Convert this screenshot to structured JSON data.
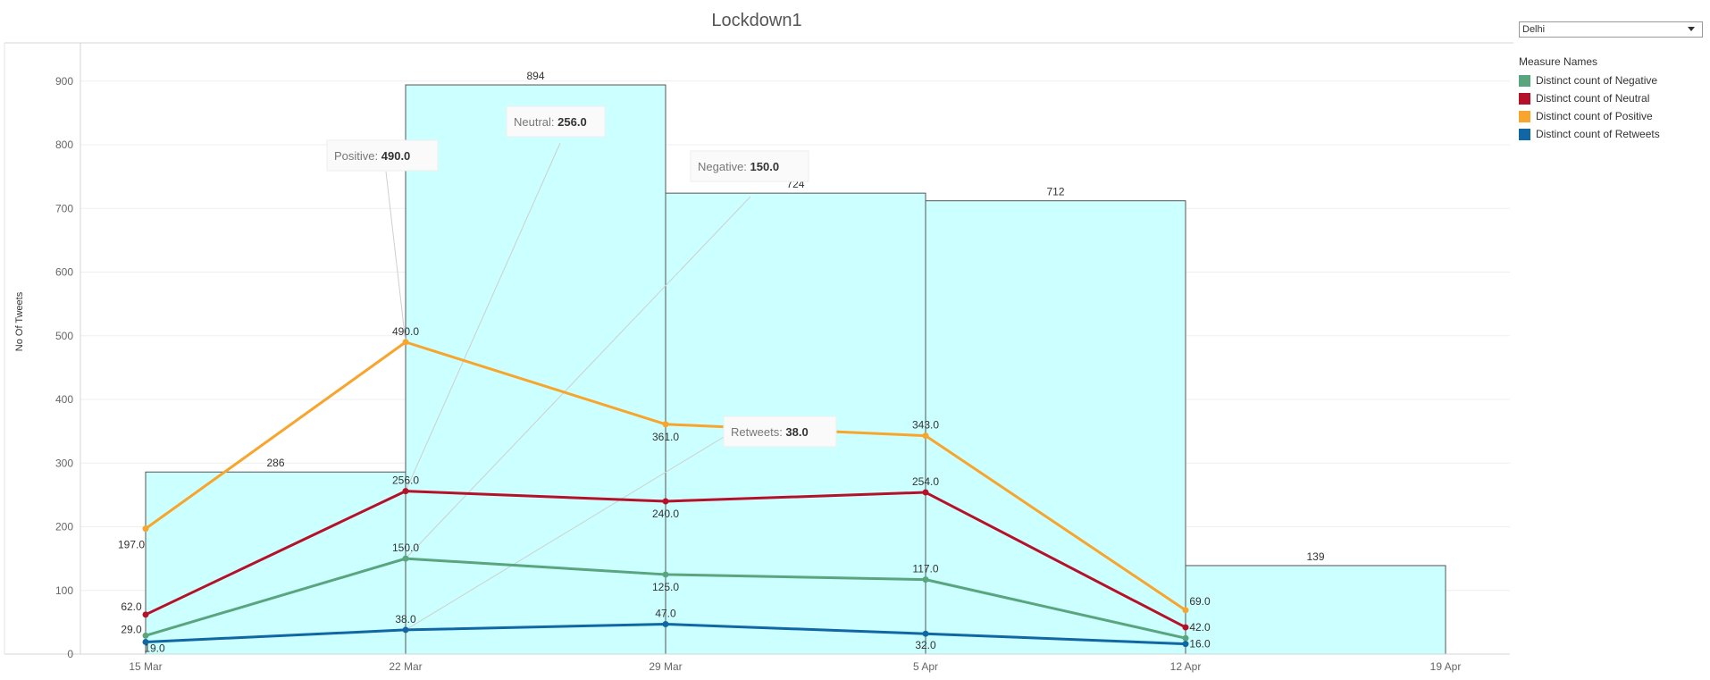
{
  "filter": {
    "selected": "Delhi"
  },
  "legend": {
    "title": "Measure Names",
    "items": [
      {
        "label": "Distinct count of Negative",
        "color": "#59a57e"
      },
      {
        "label": "Distinct count of Neutral",
        "color": "#b5122a"
      },
      {
        "label": "Distinct count of Positive",
        "color": "#f7a52c"
      },
      {
        "label": "Distinct count of Retweets",
        "color": "#1167a4"
      }
    ]
  },
  "tooltips": [
    {
      "label": "Positive:",
      "value": "490.0",
      "series": "Positive",
      "index": 1
    },
    {
      "label": "Neutral:",
      "value": "256.0",
      "series": "Neutral",
      "index": 1
    },
    {
      "label": "Negative:",
      "value": "150.0",
      "series": "Negative",
      "index": 1
    },
    {
      "label": "Retweets:",
      "value": "38.0",
      "series": "Retweets",
      "index": 1
    }
  ],
  "chart_data": {
    "type": "bar",
    "title": "Lockdown1",
    "xlabel": "",
    "ylabel": "No Of Tweets",
    "ylim": [
      0,
      960
    ],
    "yticks": [
      0,
      100,
      200,
      300,
      400,
      500,
      600,
      700,
      800,
      900
    ],
    "grid": true,
    "legend_position": "right",
    "x_tick_labels": [
      "15 Mar",
      "22 Mar",
      "29 Mar",
      "5 Apr",
      "12 Apr",
      "19 Apr"
    ],
    "bars": {
      "color": "#ccffff",
      "starts": [
        "15 Mar",
        "22 Mar",
        "29 Mar",
        "5 Apr",
        "12 Apr"
      ],
      "values": [
        286,
        894,
        724,
        712,
        139
      ],
      "labels": [
        "286",
        "894",
        "724",
        "712",
        "139"
      ]
    },
    "line_x": [
      "15 Mar",
      "22 Mar",
      "29 Mar",
      "5 Apr",
      "12 Apr"
    ],
    "series": [
      {
        "name": "Distinct count of Positive",
        "color": "#f7a52c",
        "values": [
          197,
          490,
          361,
          343,
          69
        ]
      },
      {
        "name": "Distinct count of Neutral",
        "color": "#b5122a",
        "values": [
          62,
          256,
          240,
          254,
          42
        ]
      },
      {
        "name": "Distinct count of Negative",
        "color": "#59a57e",
        "values": [
          29,
          150,
          125,
          117,
          25
        ]
      },
      {
        "name": "Distinct count of Retweets",
        "color": "#1167a4",
        "values": [
          19,
          38,
          47,
          32,
          16
        ]
      }
    ]
  }
}
